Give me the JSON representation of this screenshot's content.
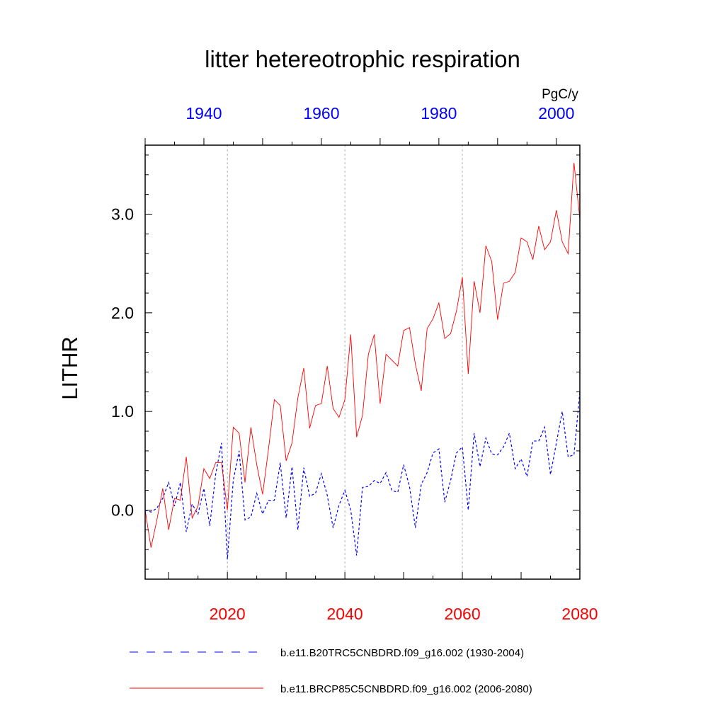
{
  "chart_data": {
    "type": "line",
    "title": "litter hetereotrophic respiration",
    "ylabel": "LITHR",
    "units": "PgC/y",
    "ylim": [
      -0.7,
      3.7
    ],
    "ytick_values": [
      0,
      1,
      2,
      3
    ],
    "ytick_labels": [
      "0.0",
      "1.0",
      "2.0",
      "3.0"
    ],
    "bottom_axis": {
      "range": [
        2006,
        2080
      ],
      "tick_values": [
        2020,
        2040,
        2060,
        2080
      ],
      "tick_labels": [
        "2020",
        "2040",
        "2060",
        "2080"
      ],
      "color": "#ff0000"
    },
    "top_axis": {
      "range": [
        1930,
        2004
      ],
      "tick_values": [
        1940,
        1960,
        1980,
        2000
      ],
      "tick_labels": [
        "1940",
        "1960",
        "1980",
        "2000"
      ],
      "color": "#0000ff"
    },
    "gridlines_x": [
      2020,
      2040,
      2060
    ],
    "series": [
      {
        "name": "b.e11.B20TRC5CNBDRD.f09_g16.002 (1930-2004)",
        "color": "#0000ff",
        "style": "dashed",
        "axis": "top",
        "x_start": 1930,
        "values": [
          0.0,
          -0.02,
          0.02,
          0.12,
          0.28,
          0.04,
          0.28,
          -0.22,
          0.06,
          -0.04,
          0.22,
          -0.16,
          0.36,
          0.68,
          -0.5,
          0.3,
          0.6,
          -0.1,
          -0.07,
          0.17,
          -0.04,
          0.1,
          0.1,
          0.48,
          -0.08,
          0.44,
          -0.2,
          0.43,
          0.14,
          0.17,
          0.37,
          0.15,
          -0.18,
          0.05,
          0.2,
          0.0,
          -0.46,
          0.23,
          0.24,
          0.3,
          0.27,
          0.38,
          0.2,
          0.18,
          0.46,
          0.24,
          -0.18,
          0.26,
          0.38,
          0.58,
          0.62,
          0.08,
          0.3,
          0.58,
          0.64,
          0.0,
          0.78,
          0.44,
          0.73,
          0.57,
          0.56,
          0.64,
          0.78,
          0.42,
          0.52,
          0.34,
          0.7,
          0.7,
          0.84,
          0.36,
          0.68,
          1.0,
          0.54,
          0.56,
          1.2
        ]
      },
      {
        "name": "b.e11.BRCP85C5CNBDRD.f09_g16.002 (2006-2080)",
        "color": "#ff0000",
        "style": "solid",
        "axis": "bottom",
        "x_start": 2006,
        "values": [
          0.0,
          -0.38,
          -0.1,
          0.22,
          -0.2,
          0.12,
          0.1,
          0.54,
          -0.08,
          0.04,
          0.42,
          0.32,
          0.48,
          0.48,
          0.0,
          0.84,
          0.78,
          0.28,
          0.84,
          0.46,
          0.16,
          0.62,
          1.12,
          1.06,
          0.5,
          0.68,
          1.14,
          1.44,
          0.83,
          1.06,
          1.08,
          1.46,
          1.03,
          0.94,
          1.12,
          1.78,
          0.74,
          0.96,
          1.58,
          1.78,
          1.08,
          1.58,
          1.52,
          1.46,
          1.82,
          1.85,
          1.48,
          1.21,
          1.84,
          1.94,
          2.1,
          1.74,
          1.79,
          2.02,
          2.36,
          1.38,
          2.32,
          2.0,
          2.68,
          2.52,
          1.93,
          2.3,
          2.32,
          2.41,
          2.76,
          2.72,
          2.54,
          2.88,
          2.64,
          2.72,
          3.04,
          2.72,
          2.6,
          3.52,
          2.95
        ]
      }
    ]
  }
}
